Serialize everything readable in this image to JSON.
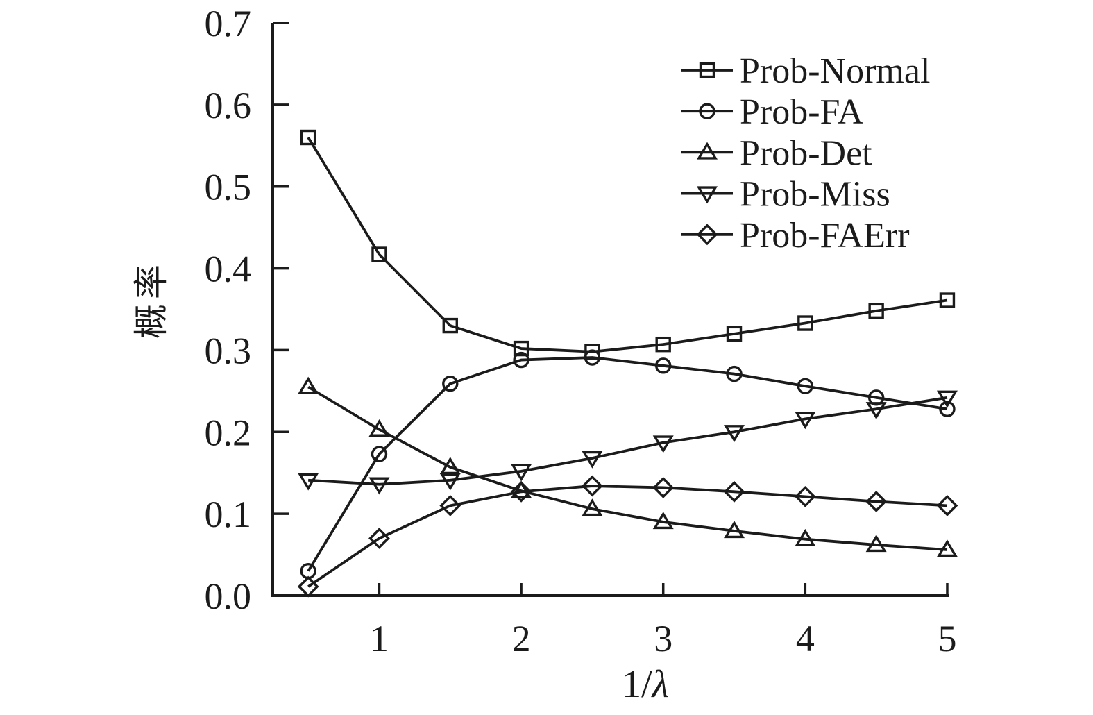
{
  "figure": {
    "background": "#ffffff",
    "ink_color": "#1b1b1b"
  },
  "axes": {
    "ylabel": "概率",
    "xlabel": "1/λ",
    "xlabel_parts": {
      "prefix": "1/",
      "symbol": "λ"
    }
  },
  "chart_data": {
    "type": "line",
    "title": "",
    "xlabel": "1/λ",
    "ylabel": "概率",
    "xlim": [
      0.25,
      5.01
    ],
    "ylim": [
      0.0,
      0.7
    ],
    "grid": false,
    "legend_position": "top-right",
    "x_ticks": [
      1,
      2,
      3,
      4,
      5
    ],
    "y_ticks": [
      "0.0",
      "0.1",
      "0.2",
      "0.3",
      "0.4",
      "0.5",
      "0.6",
      "0.7"
    ],
    "x": [
      0.5,
      1,
      1.5,
      2,
      2.5,
      3,
      3.5,
      4,
      4.5,
      5
    ],
    "series": [
      {
        "name": "Prob-Normal",
        "marker": "square",
        "values": [
          0.56,
          0.417,
          0.33,
          0.302,
          0.298,
          0.307,
          0.32,
          0.333,
          0.348,
          0.361
        ]
      },
      {
        "name": "Prob-FA",
        "marker": "circle",
        "values": [
          0.03,
          0.173,
          0.259,
          0.288,
          0.291,
          0.281,
          0.271,
          0.256,
          0.242,
          0.228
        ]
      },
      {
        "name": "Prob-Det",
        "marker": "triangle-up",
        "values": [
          0.255,
          0.203,
          0.157,
          0.128,
          0.106,
          0.09,
          0.079,
          0.069,
          0.062,
          0.056
        ]
      },
      {
        "name": "Prob-Miss",
        "marker": "triangle-down",
        "values": [
          0.141,
          0.136,
          0.141,
          0.152,
          0.168,
          0.187,
          0.2,
          0.216,
          0.228,
          0.242
        ]
      },
      {
        "name": "Prob-FAErr",
        "marker": "diamond",
        "values": [
          0.011,
          0.07,
          0.11,
          0.127,
          0.134,
          0.132,
          0.127,
          0.121,
          0.115,
          0.11
        ]
      }
    ]
  }
}
